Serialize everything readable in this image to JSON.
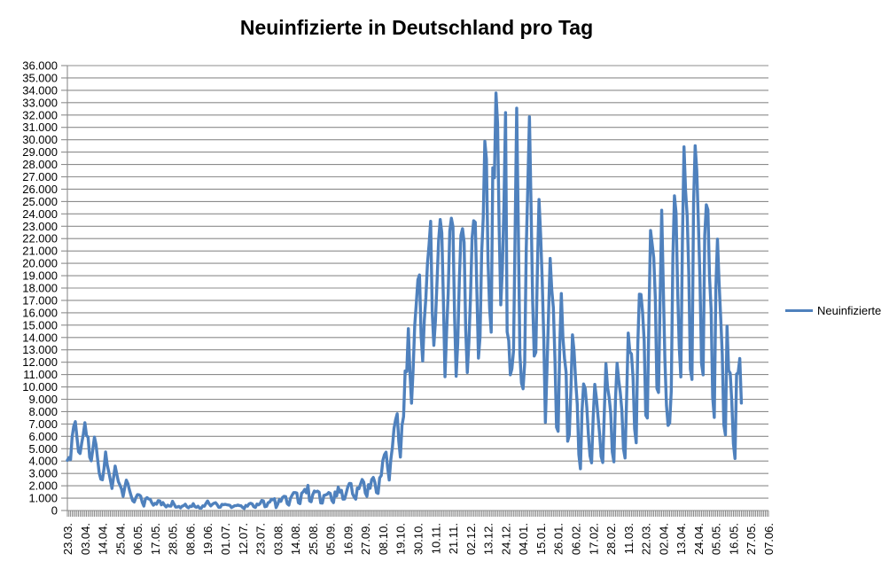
{
  "page": {
    "background": "#ffffff"
  },
  "chart": {
    "title": "Neuinfizierte in Deutschland pro Tag",
    "legend": {
      "label": "Neuinfizierte"
    }
  },
  "chart_data": {
    "type": "line",
    "title": "Neuinfizierte in Deutschland pro Tag",
    "xlabel": "",
    "ylabel": "",
    "ylim": [
      0,
      36000
    ],
    "y_step": 1000,
    "grid": "horizontal",
    "gridline_color": "#8C8C8C",
    "legend_position": "right",
    "legend_entries": [
      "Neuinfizierte"
    ],
    "y_tick_labels": [
      "0",
      "1.000",
      "2.000",
      "3.000",
      "4.000",
      "5.000",
      "6.000",
      "7.000",
      "8.000",
      "9.000",
      "10.000",
      "11.000",
      "12.000",
      "13.000",
      "14.000",
      "15.000",
      "16.000",
      "17.000",
      "18.000",
      "19.000",
      "20.000",
      "21.000",
      "22.000",
      "23.000",
      "24.000",
      "25.000",
      "26.000",
      "27.000",
      "28.000",
      "29.000",
      "30.000",
      "31.000",
      "32.000",
      "33.000",
      "34.000",
      "35.000",
      "36.000"
    ],
    "x_tick_labels": [
      "23.03.",
      "03.04.",
      "14.04.",
      "25.04.",
      "06.05.",
      "17.05.",
      "28.05.",
      "08.06.",
      "19.06.",
      "01.07.",
      "12.07.",
      "23.07.",
      "03.08.",
      "14.08.",
      "25.08.",
      "05.09.",
      "16.09.",
      "27.09.",
      "08.10.",
      "19.10.",
      "30.10.",
      "10.11.",
      "21.11.",
      "02.12.",
      "13.12.",
      "24.12.",
      "04.01.",
      "15.01.",
      "26.01.",
      "06.02.",
      "17.02.",
      "28.02.",
      "11.03.",
      "22.03.",
      "02.04.",
      "13.04.",
      "24.04.",
      "05.05.",
      "16.05.",
      "27.05.",
      "07.06."
    ],
    "x_tick_interval": 11,
    "x_total_categories": 441,
    "x_start_label": "23.03.",
    "series": [
      {
        "name": "Neuinfizierte",
        "color": "#4F81BD",
        "values": [
          4062,
          4285,
          4118,
          5940,
          6824,
          7187,
          5936,
          4751,
          4615,
          5453,
          6156,
          7103,
          6082,
          5936,
          4316,
          4022,
          4974,
          5938,
          5323,
          4133,
          3032,
          2537,
          2486,
          3394,
          4735,
          3699,
          3118,
          2458,
          1785,
          2678,
          3594,
          2942,
          2337,
          2055,
          1737,
          1144,
          1852,
          2458,
          2173,
          1639,
          1187,
          793,
          685,
          1037,
          1284,
          1268,
          1158,
          667,
          357,
          933,
          1042,
          933,
          913,
          620,
          431,
          583,
          513,
          797,
          777,
          460,
          638,
          431,
          289,
          432,
          362,
          353,
          741,
          507,
          271,
          286,
          333,
          213,
          342,
          394,
          507,
          301,
          214,
          350,
          318,
          555,
          318,
          258,
          348,
          192,
          186,
          378,
          345,
          580,
          770,
          537,
          374,
          503,
          587,
          630,
          477,
          256,
          262,
          498,
          466,
          503,
          466,
          446,
          422,
          239,
          312,
          390,
          397,
          442,
          395,
          378,
          248,
          159,
          412,
          351,
          534,
          583,
          529,
          305,
          249,
          522,
          454,
          569,
          815,
          781,
          305,
          340,
          633,
          684,
          902,
          870,
          955,
          240,
          509,
          879,
          741,
          1045,
          1147,
          1122,
          555,
          436,
          966,
          1226,
          1445,
          1449,
          1415,
          625,
          561,
          1390,
          1510,
          1707,
          1427,
          2034,
          782,
          711,
          1278,
          1576,
          1507,
          1571,
          1479,
          610,
          601,
          1218,
          1256,
          1311,
          1453,
          1378,
          814,
          633,
          1499,
          1176,
          1892,
          1484,
          1630,
          920,
          927,
          1407,
          1901,
          2194,
          2179,
          1345,
          1084,
          922,
          1821,
          1769,
          2143,
          2507,
          2297,
          1411,
          1144,
          2089,
          1798,
          2503,
          2673,
          2279,
          1449,
          1382,
          2639,
          2828,
          4058,
          4516,
          4721,
          3483,
          2467,
          4122,
          5132,
          6638,
          7334,
          7830,
          5587,
          4325,
          6868,
          7595,
          11287,
          11242,
          14714,
          11176,
          8685,
          11409,
          14964,
          16774,
          18681,
          19059,
          14177,
          12097,
          15352,
          17214,
          19990,
          21506,
          23399,
          16017,
          13363,
          15332,
          18487,
          21866,
          23542,
          22461,
          16947,
          10824,
          14419,
          17561,
          22609,
          23648,
          22964,
          15741,
          10864,
          13554,
          18633,
          22268,
          22806,
          21695,
          14611,
          11169,
          13604,
          17270,
          22046,
          23449,
          23318,
          17767,
          12332,
          14054,
          20815,
          23679,
          29875,
          28438,
          20200,
          16362,
          14432,
          27728,
          26923,
          33777,
          31300,
          22771,
          16643,
          19528,
          24740,
          32195,
          14455,
          13755,
          10976,
          11477,
          12892,
          22459,
          32552,
          22924,
          12690,
          10315,
          9847,
          11897,
          21237,
          26391,
          31849,
          24694,
          16946,
          12497,
          12802,
          19600,
          25164,
          22368,
          18678,
          13882,
          7141,
          11369,
          15974,
          20398,
          17862,
          16417,
          12257,
          6729,
          6408,
          13202,
          17553,
          14022,
          12321,
          11192,
          5608,
          6114,
          9705,
          14211,
          12908,
          10485,
          8616,
          4535,
          3379,
          8072,
          10237,
          9860,
          8354,
          6114,
          4426,
          3856,
          7556,
          10207,
          9113,
          7676,
          6214,
          4369,
          3883,
          8007,
          11869,
          9997,
          9164,
          7890,
          4732,
          3943,
          9019,
          11912,
          10580,
          9557,
          8103,
          5011,
          4252,
          9146,
          14356,
          12834,
          12674,
          10790,
          6604,
          5480,
          13435,
          17504,
          17482,
          16033,
          13733,
          7709,
          7485,
          15813,
          22657,
          21573,
          20472,
          17176,
          9872,
          9549,
          17051,
          24300,
          18129,
          12196,
          8497,
          6885,
          7073,
          9677,
          20407,
          25464,
          24097,
          17855,
          13245,
          10810,
          21693,
          29426,
          25831,
          23804,
          19185,
          11437,
          10609,
          24884,
          29518,
          27543,
          23392,
          18773,
          11907,
          10976,
          22231,
          24736,
          24329,
          18935,
          16290,
          9160,
          7534,
          18034,
          21953,
          18485,
          15685,
          12656,
          6922,
          6125,
          14909,
          11336,
          11103,
          8769,
          5412,
          4209,
          11040,
          11168,
          12298,
          8687
        ]
      }
    ]
  }
}
